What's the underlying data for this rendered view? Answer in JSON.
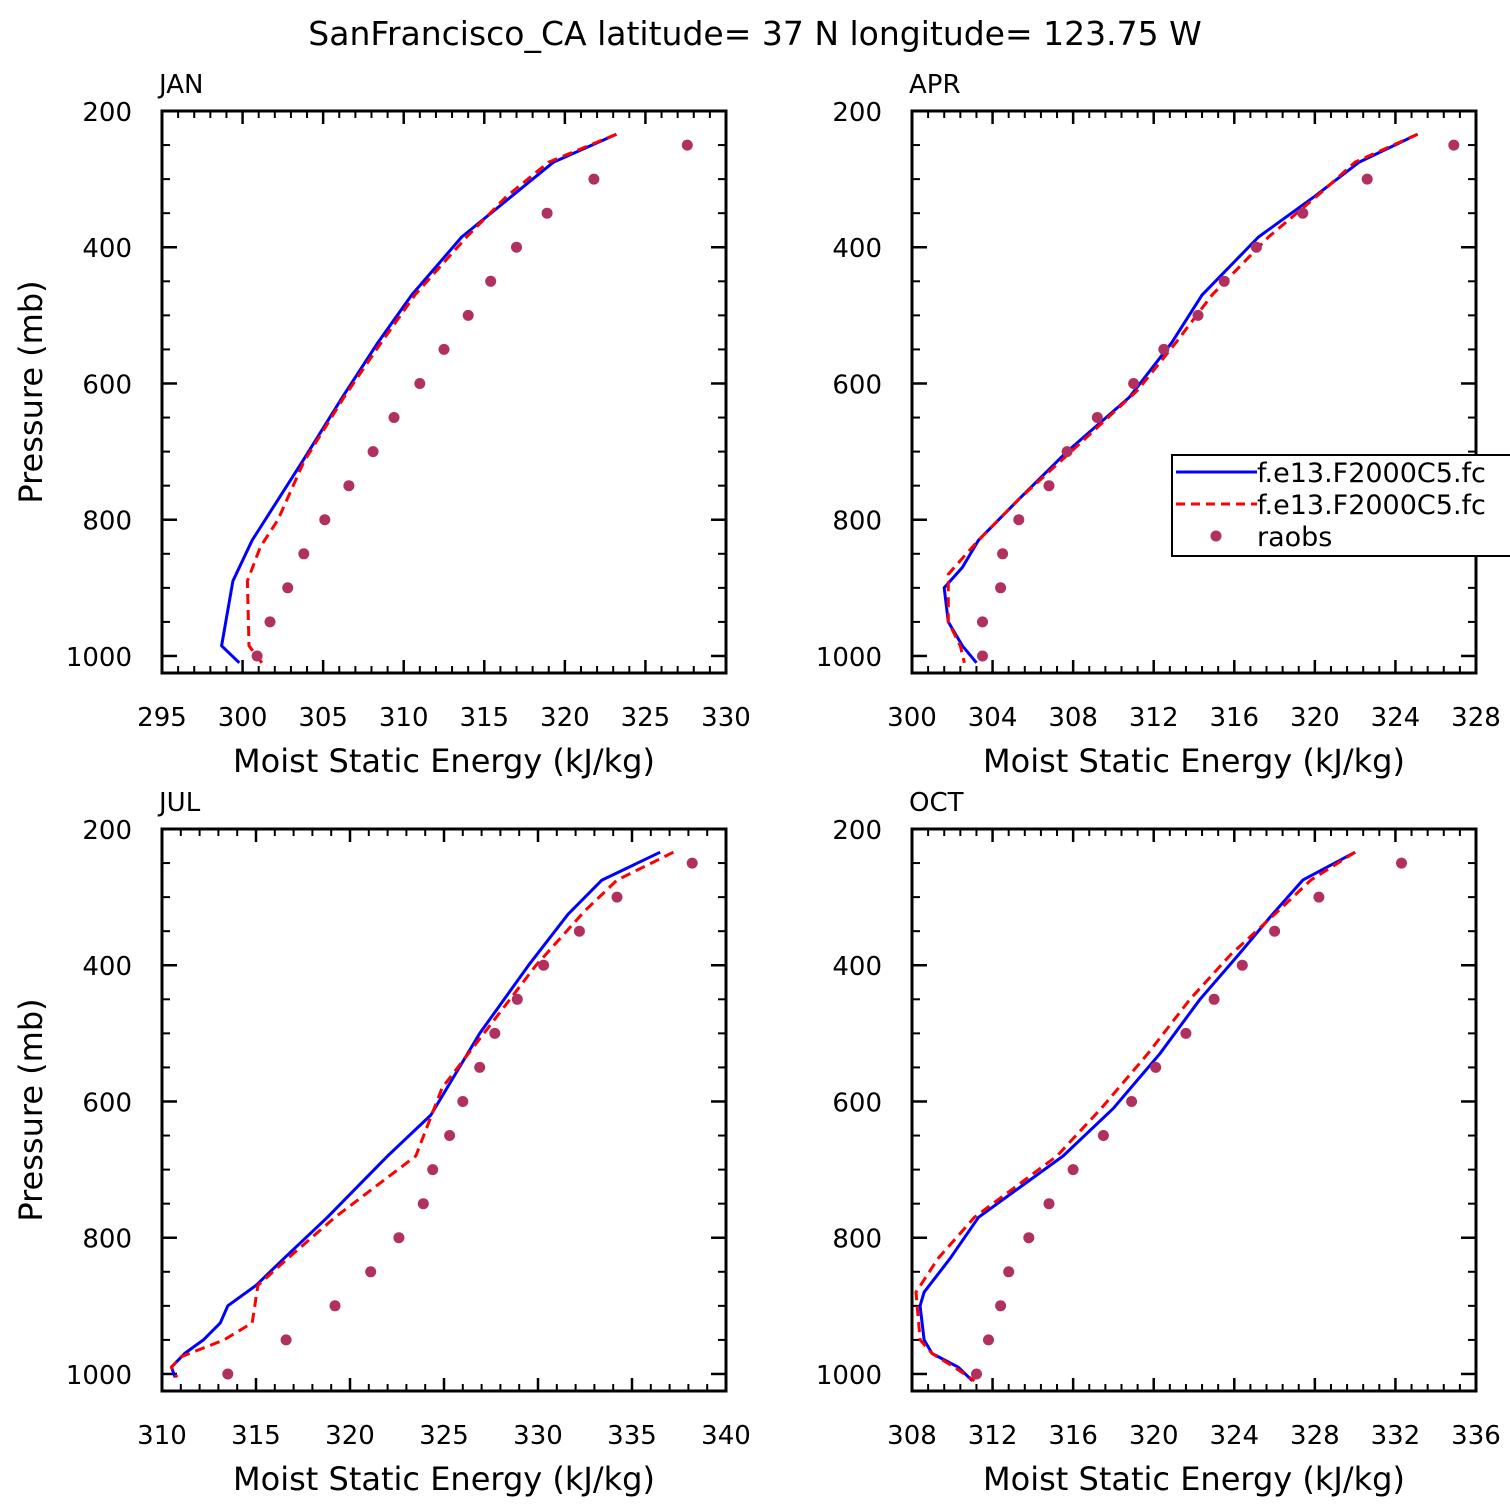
{
  "title": "SanFrancisco_CA  latitude= 37 N longitude= 123.75 W",
  "legend": {
    "entries": [
      "f.e13.F2000C5.fc",
      "f.e13.F2000C5.fc",
      "raobs"
    ]
  },
  "colors": {
    "series_a": "#0000ff",
    "series_b": "#ff0000",
    "raobs": "#b03060"
  },
  "chart_data": [
    {
      "type": "line",
      "panel": "JAN",
      "xlabel": "Moist Static Energy (kJ/kg)",
      "ylabel": "Pressure (mb)",
      "xlim": [
        295,
        330
      ],
      "xticks": [
        295,
        300,
        305,
        310,
        315,
        320,
        325,
        330
      ],
      "ylim": [
        1025,
        200
      ],
      "yticks": [
        200,
        400,
        600,
        800,
        1000
      ],
      "series": [
        {
          "values": [
            [
              323.2,
              234
            ],
            [
              319.3,
              275
            ],
            [
              316.7,
              325
            ],
            [
              313.6,
              385
            ],
            [
              310.5,
              470
            ],
            [
              308.4,
              540
            ],
            [
              306.2,
              620
            ],
            [
              303.7,
              715
            ],
            [
              300.6,
              830
            ],
            [
              299.4,
              890
            ],
            [
              298.7,
              985
            ],
            [
              299.8,
              1010
            ]
          ]
        },
        {
          "values": [
            [
              323.2,
              234
            ],
            [
              319.0,
              275
            ],
            [
              316.4,
              325
            ],
            [
              313.9,
              385
            ],
            [
              310.7,
              470
            ],
            [
              308.6,
              540
            ],
            [
              306.3,
              620
            ],
            [
              303.8,
              715
            ],
            [
              302.2,
              800
            ],
            [
              301.1,
              840
            ],
            [
              300.3,
              890
            ],
            [
              300.4,
              985
            ],
            [
              301.2,
              1010
            ]
          ]
        },
        {
          "values": [
            [
              327.6,
              250
            ],
            [
              321.8,
              300
            ],
            [
              318.9,
              350
            ],
            [
              317.0,
              400
            ],
            [
              315.4,
              450
            ],
            [
              314.0,
              500
            ],
            [
              312.5,
              550
            ],
            [
              311.0,
              600
            ],
            [
              309.4,
              650
            ],
            [
              308.1,
              700
            ],
            [
              306.6,
              750
            ],
            [
              305.1,
              800
            ],
            [
              303.8,
              850
            ],
            [
              302.8,
              900
            ],
            [
              301.7,
              950
            ],
            [
              300.9,
              1000
            ]
          ]
        }
      ]
    },
    {
      "type": "line",
      "panel": "APR",
      "xlabel": "Moist Static Energy (kJ/kg)",
      "ylabel": "",
      "xlim": [
        300,
        328
      ],
      "xticks": [
        300,
        304,
        308,
        312,
        316,
        320,
        324,
        328
      ],
      "ylim": [
        1025,
        200
      ],
      "yticks": [
        200,
        400,
        600,
        800,
        1000
      ],
      "series": [
        {
          "values": [
            [
              325.1,
              234
            ],
            [
              322.2,
              275
            ],
            [
              320.0,
              325
            ],
            [
              317.2,
              385
            ],
            [
              314.4,
              470
            ],
            [
              312.9,
              540
            ],
            [
              310.8,
              620
            ],
            [
              307.7,
              700
            ],
            [
              305.3,
              770
            ],
            [
              303.3,
              830
            ],
            [
              302.5,
              870
            ],
            [
              301.6,
              900
            ],
            [
              301.8,
              950
            ],
            [
              302.5,
              985
            ],
            [
              303.2,
              1010
            ]
          ]
        },
        {
          "values": [
            [
              325.1,
              234
            ],
            [
              322.0,
              275
            ],
            [
              320.3,
              320
            ],
            [
              317.7,
              385
            ],
            [
              314.9,
              470
            ],
            [
              313.1,
              540
            ],
            [
              311.2,
              610
            ],
            [
              307.9,
              700
            ],
            [
              305.3,
              770
            ],
            [
              303.3,
              830
            ],
            [
              301.8,
              880
            ],
            [
              301.8,
              950
            ],
            [
              302.4,
              985
            ],
            [
              302.6,
              1010
            ]
          ]
        },
        {
          "values": [
            [
              326.9,
              250
            ],
            [
              322.6,
              300
            ],
            [
              319.4,
              350
            ],
            [
              317.1,
              400
            ],
            [
              315.5,
              450
            ],
            [
              314.2,
              500
            ],
            [
              312.5,
              550
            ],
            [
              311.0,
              600
            ],
            [
              309.2,
              650
            ],
            [
              307.7,
              700
            ],
            [
              306.8,
              750
            ],
            [
              305.3,
              800
            ],
            [
              304.5,
              850
            ],
            [
              304.4,
              900
            ],
            [
              303.5,
              950
            ],
            [
              303.5,
              1000
            ]
          ]
        }
      ]
    },
    {
      "type": "line",
      "panel": "JUL",
      "xlabel": "Moist Static Energy (kJ/kg)",
      "ylabel": "Pressure (mb)",
      "xlim": [
        310,
        340
      ],
      "xticks": [
        310,
        315,
        320,
        325,
        330,
        335,
        340
      ],
      "ylim": [
        1025,
        200
      ],
      "yticks": [
        200,
        400,
        600,
        800,
        1000
      ],
      "series": [
        {
          "values": [
            [
              336.5,
              234
            ],
            [
              333.4,
              275
            ],
            [
              331.6,
              325
            ],
            [
              329.5,
              400
            ],
            [
              326.9,
              500
            ],
            [
              324.3,
              620
            ],
            [
              322.0,
              680
            ],
            [
              318.8,
              770
            ],
            [
              316.5,
              830
            ],
            [
              315.0,
              870
            ],
            [
              313.5,
              900
            ],
            [
              313.1,
              925
            ],
            [
              312.2,
              950
            ],
            [
              311.2,
              970
            ],
            [
              310.5,
              990
            ],
            [
              310.7,
              1005
            ]
          ]
        },
        {
          "values": [
            [
              337.2,
              234
            ],
            [
              334.2,
              275
            ],
            [
              332.5,
              320
            ],
            [
              329.9,
              400
            ],
            [
              327.4,
              490
            ],
            [
              324.9,
              580
            ],
            [
              323.5,
              680
            ],
            [
              319.2,
              770
            ],
            [
              316.7,
              830
            ],
            [
              315.1,
              870
            ],
            [
              314.8,
              925
            ],
            [
              313.3,
              950
            ],
            [
              311.0,
              975
            ],
            [
              310.5,
              990
            ],
            [
              310.8,
              1005
            ]
          ]
        },
        {
          "values": [
            [
              338.2,
              250
            ],
            [
              334.2,
              300
            ],
            [
              332.2,
              350
            ],
            [
              330.3,
              400
            ],
            [
              328.9,
              450
            ],
            [
              327.7,
              500
            ],
            [
              326.9,
              550
            ],
            [
              326.0,
              600
            ],
            [
              325.3,
              650
            ],
            [
              324.4,
              700
            ],
            [
              323.9,
              750
            ],
            [
              322.6,
              800
            ],
            [
              321.1,
              850
            ],
            [
              319.2,
              900
            ],
            [
              316.6,
              950
            ],
            [
              313.5,
              1000
            ]
          ]
        }
      ]
    },
    {
      "type": "line",
      "panel": "OCT",
      "xlabel": "Moist Static Energy (kJ/kg)",
      "ylabel": "",
      "xlim": [
        308,
        336
      ],
      "xticks": [
        308,
        312,
        316,
        320,
        324,
        328,
        332,
        336
      ],
      "ylim": [
        1025,
        200
      ],
      "yticks": [
        200,
        400,
        600,
        800,
        1000
      ],
      "series": [
        {
          "values": [
            [
              330.0,
              234
            ],
            [
              327.4,
              275
            ],
            [
              325.9,
              325
            ],
            [
              324.2,
              385
            ],
            [
              322.3,
              450
            ],
            [
              320.3,
              530
            ],
            [
              318.0,
              610
            ],
            [
              315.5,
              680
            ],
            [
              311.3,
              770
            ],
            [
              309.9,
              830
            ],
            [
              308.6,
              880
            ],
            [
              308.4,
              900
            ],
            [
              308.6,
              950
            ],
            [
              309.0,
              970
            ],
            [
              310.3,
              990
            ],
            [
              311.0,
              1010
            ]
          ]
        },
        {
          "values": [
            [
              330.0,
              234
            ],
            [
              327.8,
              275
            ],
            [
              326.2,
              320
            ],
            [
              323.8,
              385
            ],
            [
              321.8,
              450
            ],
            [
              319.7,
              530
            ],
            [
              317.4,
              610
            ],
            [
              315.2,
              680
            ],
            [
              311.1,
              770
            ],
            [
              309.3,
              830
            ],
            [
              308.2,
              880
            ],
            [
              308.4,
              950
            ],
            [
              309.0,
              970
            ],
            [
              310.1,
              990
            ],
            [
              311.1,
              1010
            ]
          ]
        },
        {
          "values": [
            [
              332.3,
              250
            ],
            [
              328.2,
              300
            ],
            [
              326.0,
              350
            ],
            [
              324.4,
              400
            ],
            [
              323.0,
              450
            ],
            [
              321.6,
              500
            ],
            [
              320.1,
              550
            ],
            [
              318.9,
              600
            ],
            [
              317.5,
              650
            ],
            [
              316.0,
              700
            ],
            [
              314.8,
              750
            ],
            [
              313.8,
              800
            ],
            [
              312.8,
              850
            ],
            [
              312.4,
              900
            ],
            [
              311.8,
              950
            ],
            [
              311.2,
              1000
            ]
          ]
        }
      ]
    }
  ]
}
